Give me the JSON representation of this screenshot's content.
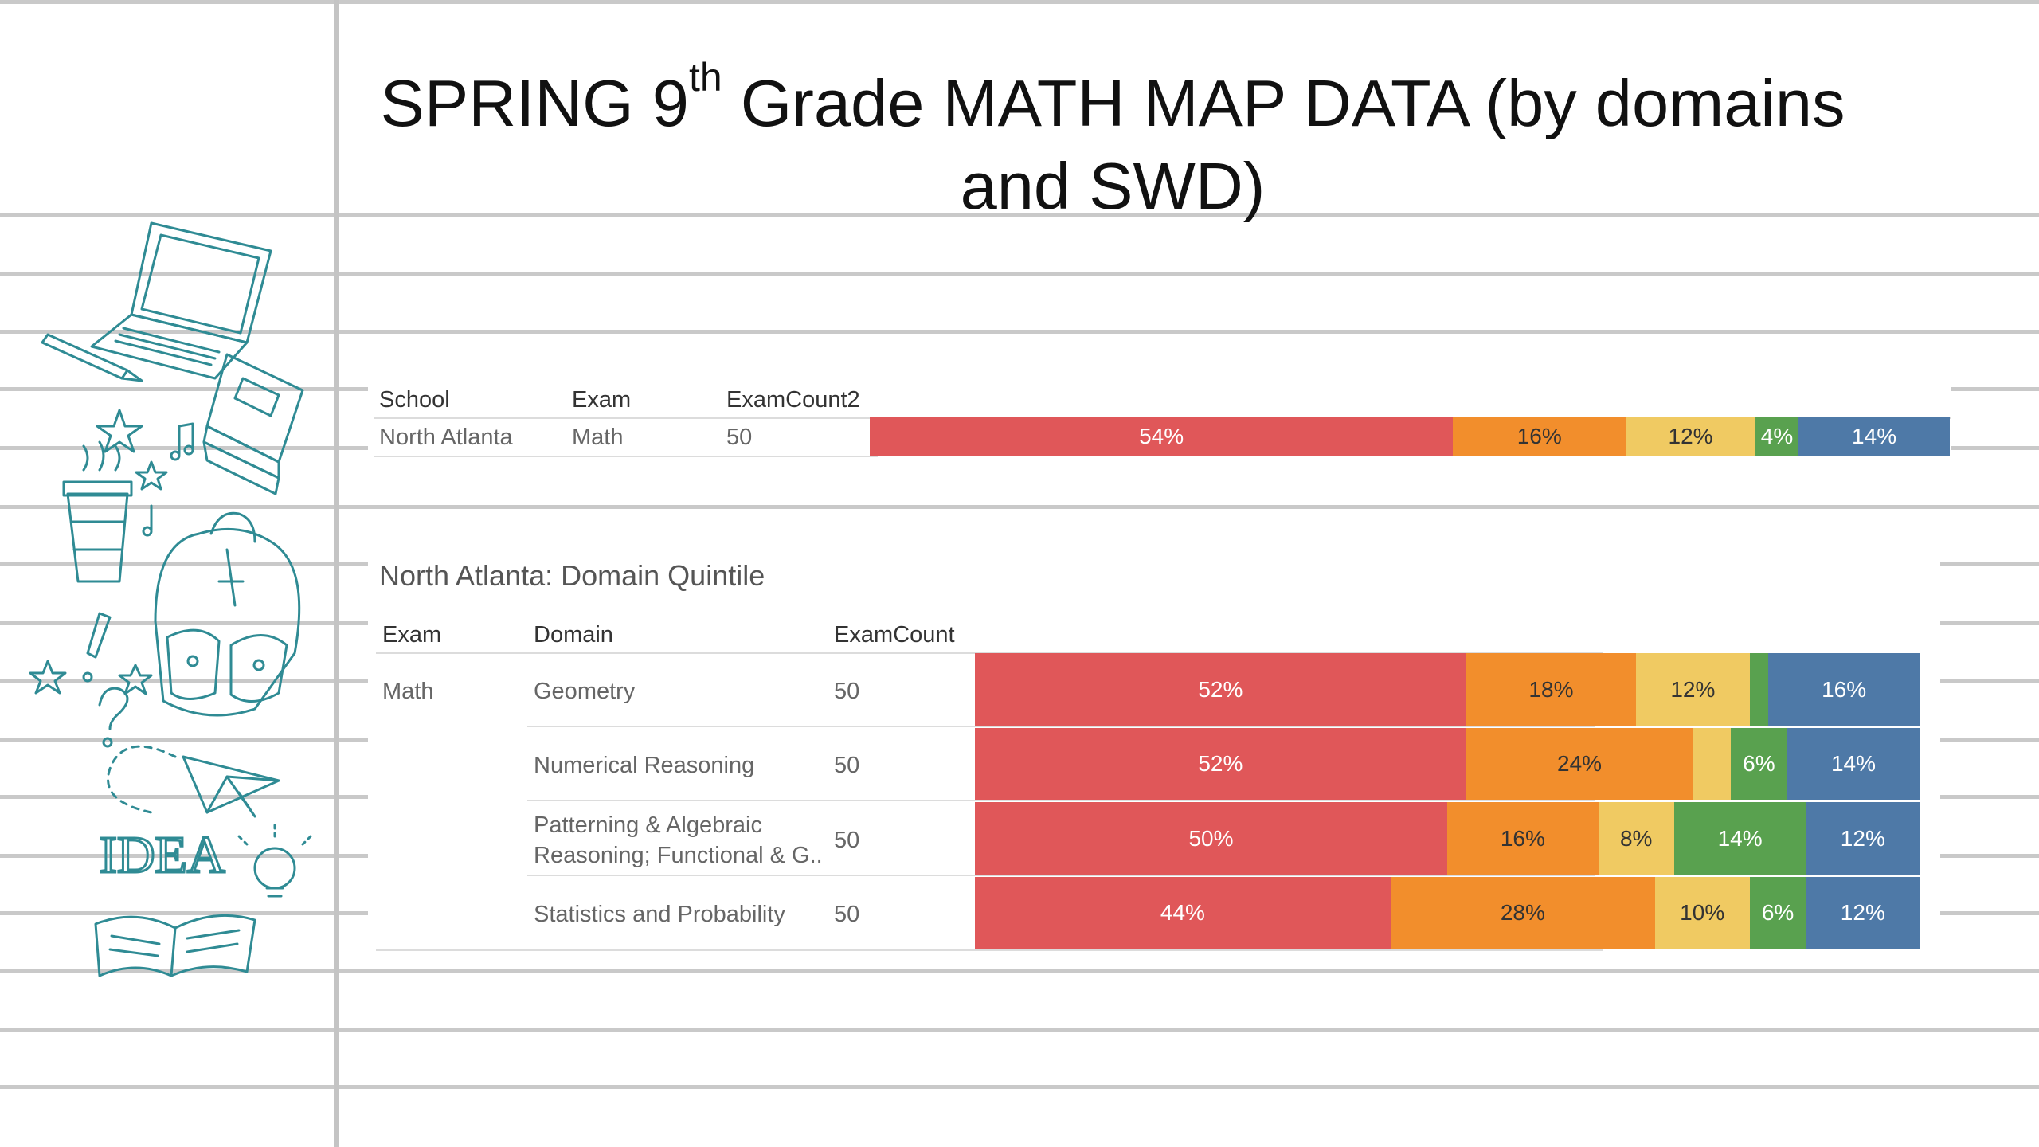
{
  "title": {
    "main": "SPRING 9",
    "sup": "th",
    "rest": " Grade MATH MAP DATA (by domains and SWD)"
  },
  "colors": {
    "q1": "#e05759",
    "q2": "#f28e2c",
    "q3": "#f0ca62",
    "q4": "#59a14f",
    "q5": "#4e79a7",
    "lines": "#c9c9c9",
    "doodle": "#2f8b94"
  },
  "icons": [
    "laptop-icon",
    "pen-icon",
    "books-icon",
    "star-icon",
    "music-note-icon",
    "coffee-cup-icon",
    "backpack-icon",
    "exclamation-icon",
    "question-icon",
    "paper-plane-icon",
    "idea-text-icon",
    "lightbulb-icon",
    "open-book-icon"
  ],
  "idea_text": "IDEA",
  "table1": {
    "headers": {
      "school": "School",
      "exam": "Exam",
      "count": "ExamCount2"
    },
    "row": {
      "school": "North Atlanta",
      "exam": "Math",
      "count": "50"
    }
  },
  "table2": {
    "title": "North Atlanta: Domain Quintile",
    "headers": {
      "exam": "Exam",
      "domain": "Domain",
      "count": "ExamCount"
    },
    "exam": "Math",
    "rows": [
      {
        "domain": "Geometry",
        "count": "50"
      },
      {
        "domain": "Numerical Reasoning",
        "count": "50"
      },
      {
        "domain_line1": "Patterning & Algebraic",
        "domain_line2": "Reasoning; Functional & G..",
        "count": "50"
      },
      {
        "domain": "Statistics and Probability",
        "count": "50"
      }
    ]
  },
  "chart_data": [
    {
      "type": "bar",
      "stacked": true,
      "orientation": "horizontal",
      "categories": [
        "North Atlanta – Math"
      ],
      "series": [
        {
          "values": [
            54
          ]
        },
        {
          "values": [
            16
          ]
        },
        {
          "values": [
            12
          ]
        },
        {
          "values": [
            4
          ]
        },
        {
          "values": [
            14
          ]
        }
      ],
      "labels": [
        [
          "54%",
          "16%",
          "12%",
          "4%",
          "14%"
        ]
      ]
    },
    {
      "type": "bar",
      "stacked": true,
      "orientation": "horizontal",
      "title": "North Atlanta: Domain Quintile",
      "categories": [
        "Geometry",
        "Numerical Reasoning",
        "Patterning & Algebraic Reasoning; Functional & G..",
        "Statistics and Probability"
      ],
      "series": [
        {
          "values": [
            52,
            52,
            50,
            44
          ]
        },
        {
          "values": [
            18,
            24,
            16,
            28
          ]
        },
        {
          "values": [
            12,
            4,
            8,
            10
          ]
        },
        {
          "values": [
            2,
            6,
            14,
            6
          ]
        },
        {
          "values": [
            16,
            14,
            12,
            12
          ]
        }
      ],
      "labels": [
        [
          "52%",
          "18%",
          "12%",
          "",
          "16%"
        ],
        [
          "52%",
          "24%",
          "",
          "6%",
          "14%"
        ],
        [
          "50%",
          "16%",
          "8%",
          "14%",
          "12%"
        ],
        [
          "44%",
          "28%",
          "10%",
          "6%",
          "12%"
        ]
      ]
    }
  ]
}
